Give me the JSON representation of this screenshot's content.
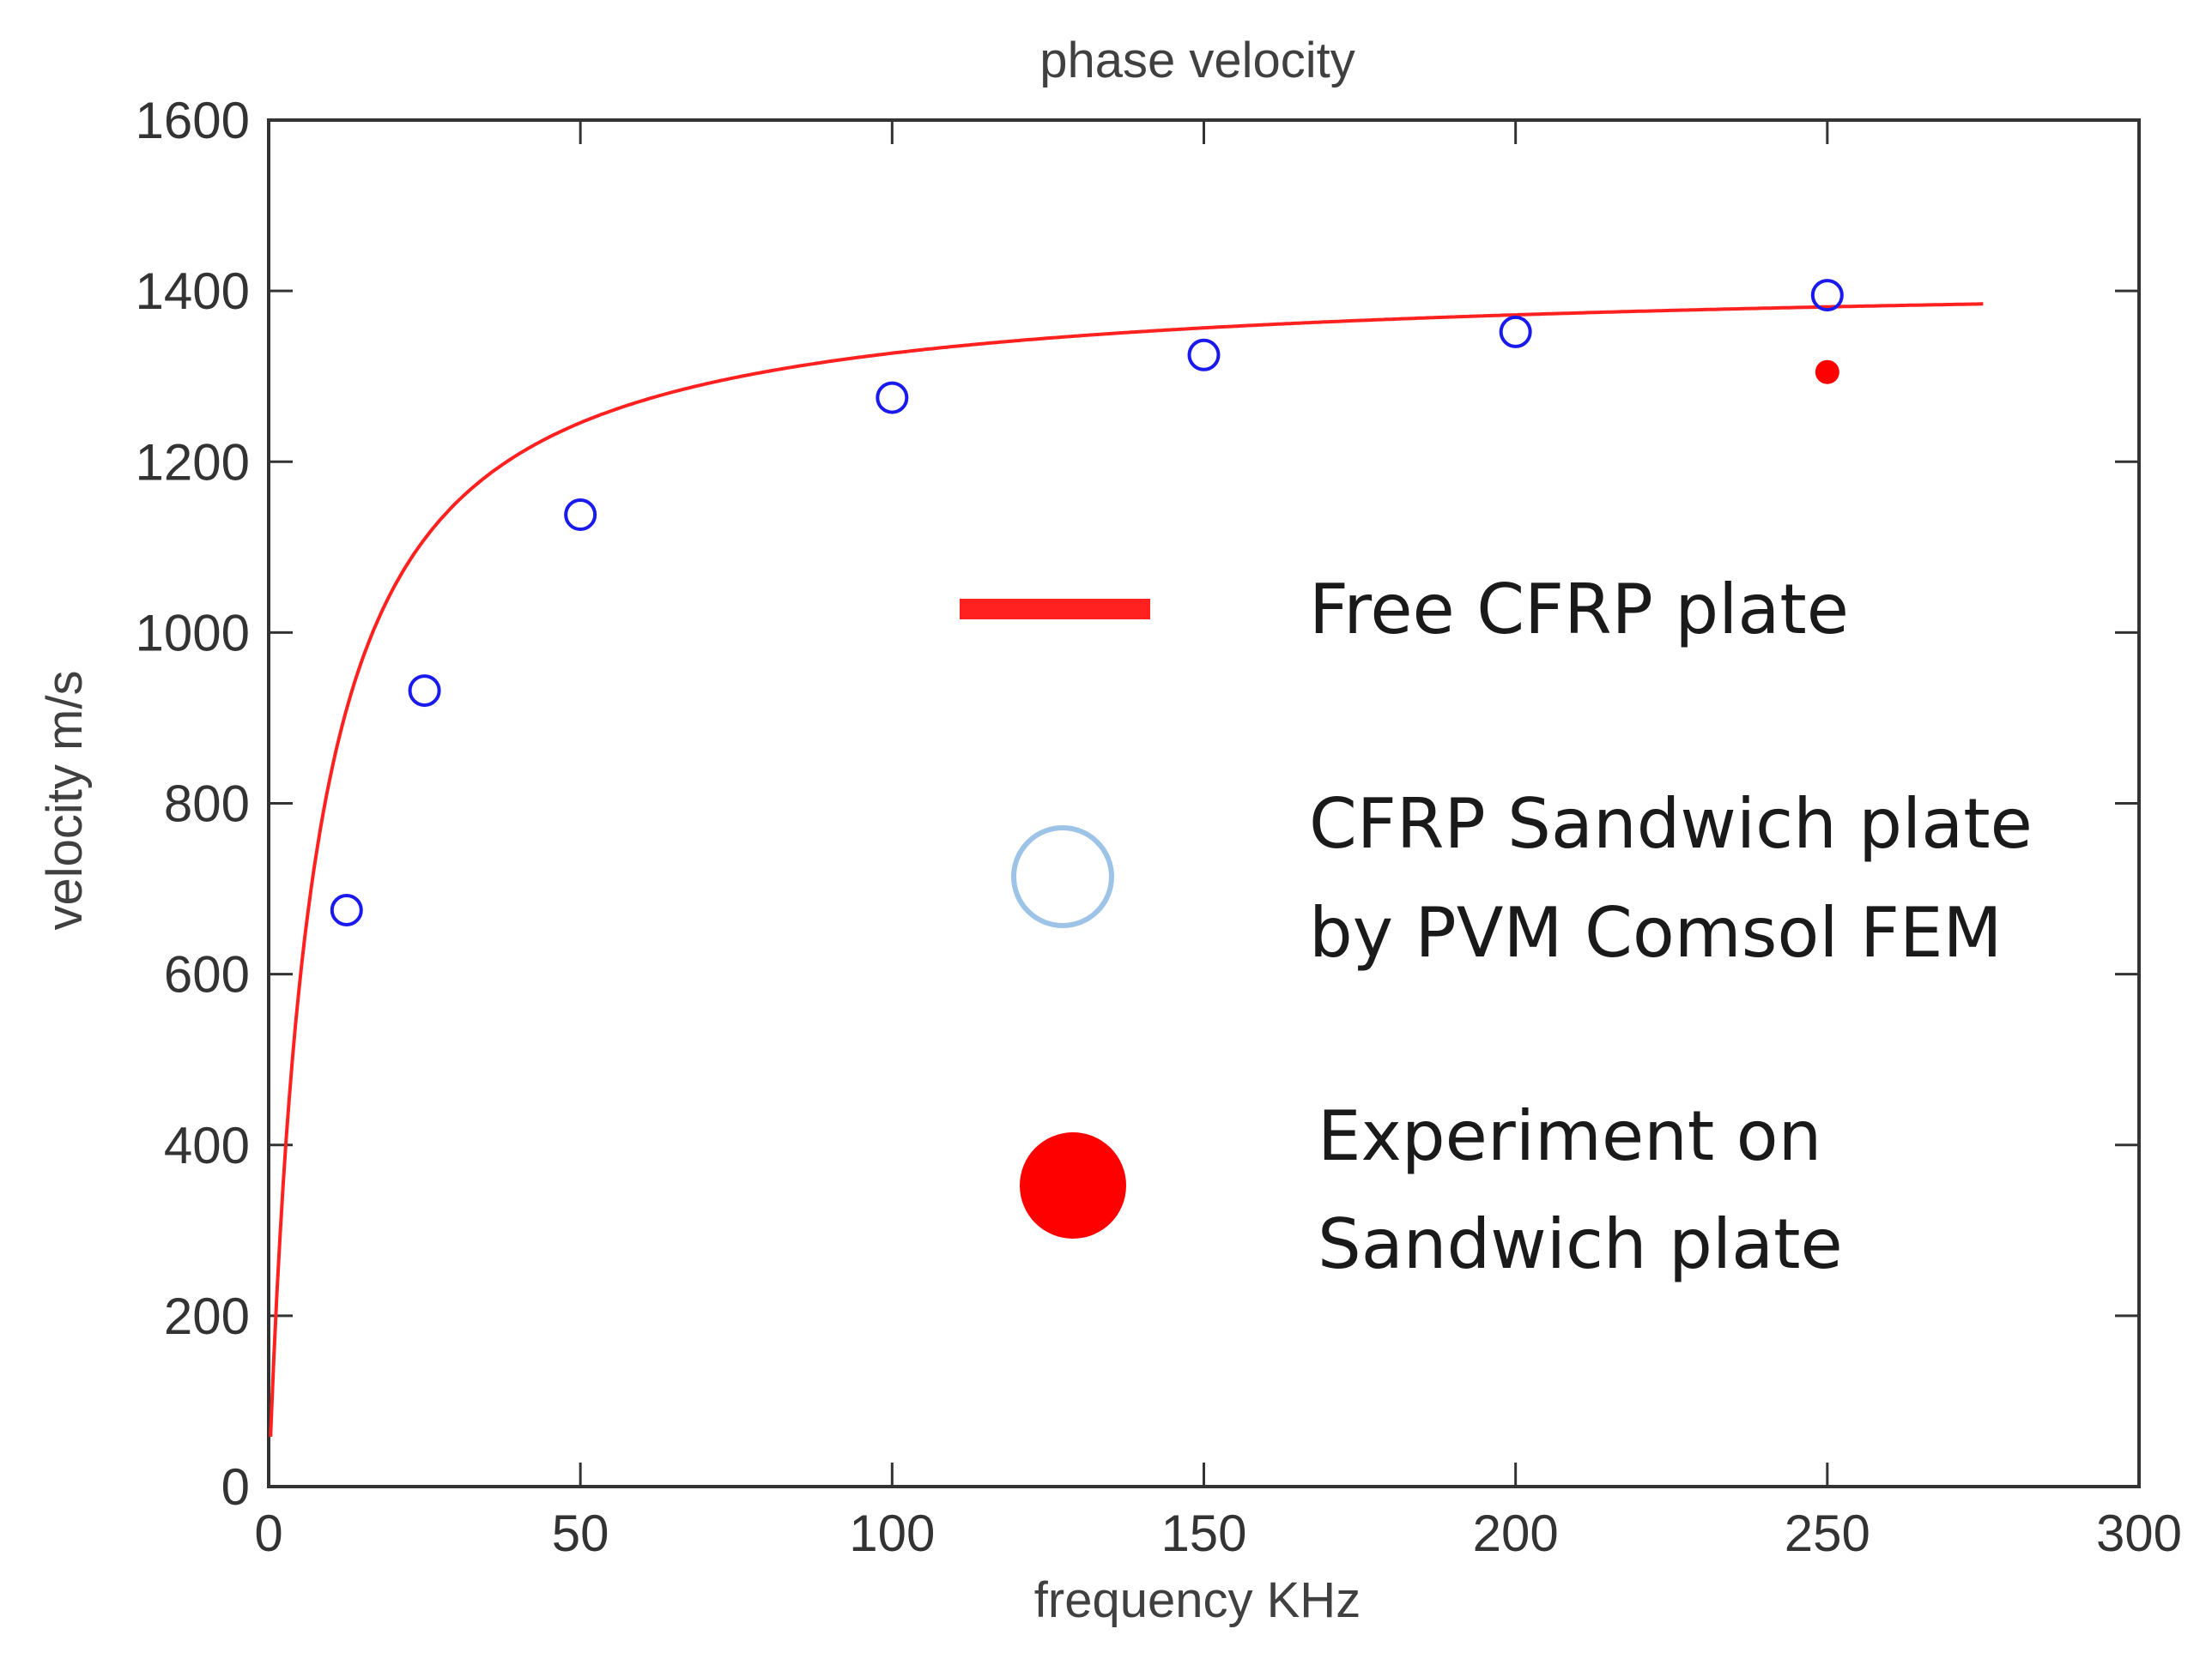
{
  "chart_data": {
    "type": "line",
    "title": "phase velocity",
    "xlabel": "frequency KHz",
    "ylabel": "velocity m/s",
    "xlim": [
      0,
      300
    ],
    "ylim": [
      0,
      1600
    ],
    "x_ticks": [
      0,
      50,
      100,
      150,
      200,
      250,
      300
    ],
    "y_ticks": [
      0,
      200,
      400,
      600,
      800,
      1000,
      1200,
      1400,
      1600
    ],
    "grid": false,
    "legend_position": "center-right",
    "series": [
      {
        "name": "Free CFRP plate",
        "kind": "line",
        "color": "#ff2020",
        "v_inf": 1420,
        "k": 7,
        "x_range": [
          0,
          275
        ]
      },
      {
        "name": "CFRP Sandwich plate by PVM Comsol FEM",
        "legend_lines": [
          "CFRP Sandwich plate",
          "by PVM Comsol FEM"
        ],
        "kind": "scatter-open-circle",
        "color": "#1a1aee",
        "legend_color": "#9dc3e6",
        "x": [
          12.5,
          25,
          50,
          100,
          150,
          200,
          250
        ],
        "y": [
          675,
          932,
          1138,
          1275,
          1325,
          1352,
          1395
        ]
      },
      {
        "name": "Experiment on Sandwich plate",
        "legend_lines": [
          "Experiment on",
          "Sandwich plate"
        ],
        "kind": "scatter-filled-dot",
        "color": "#ff0000",
        "x": [
          250
        ],
        "y": [
          1305
        ]
      }
    ]
  }
}
